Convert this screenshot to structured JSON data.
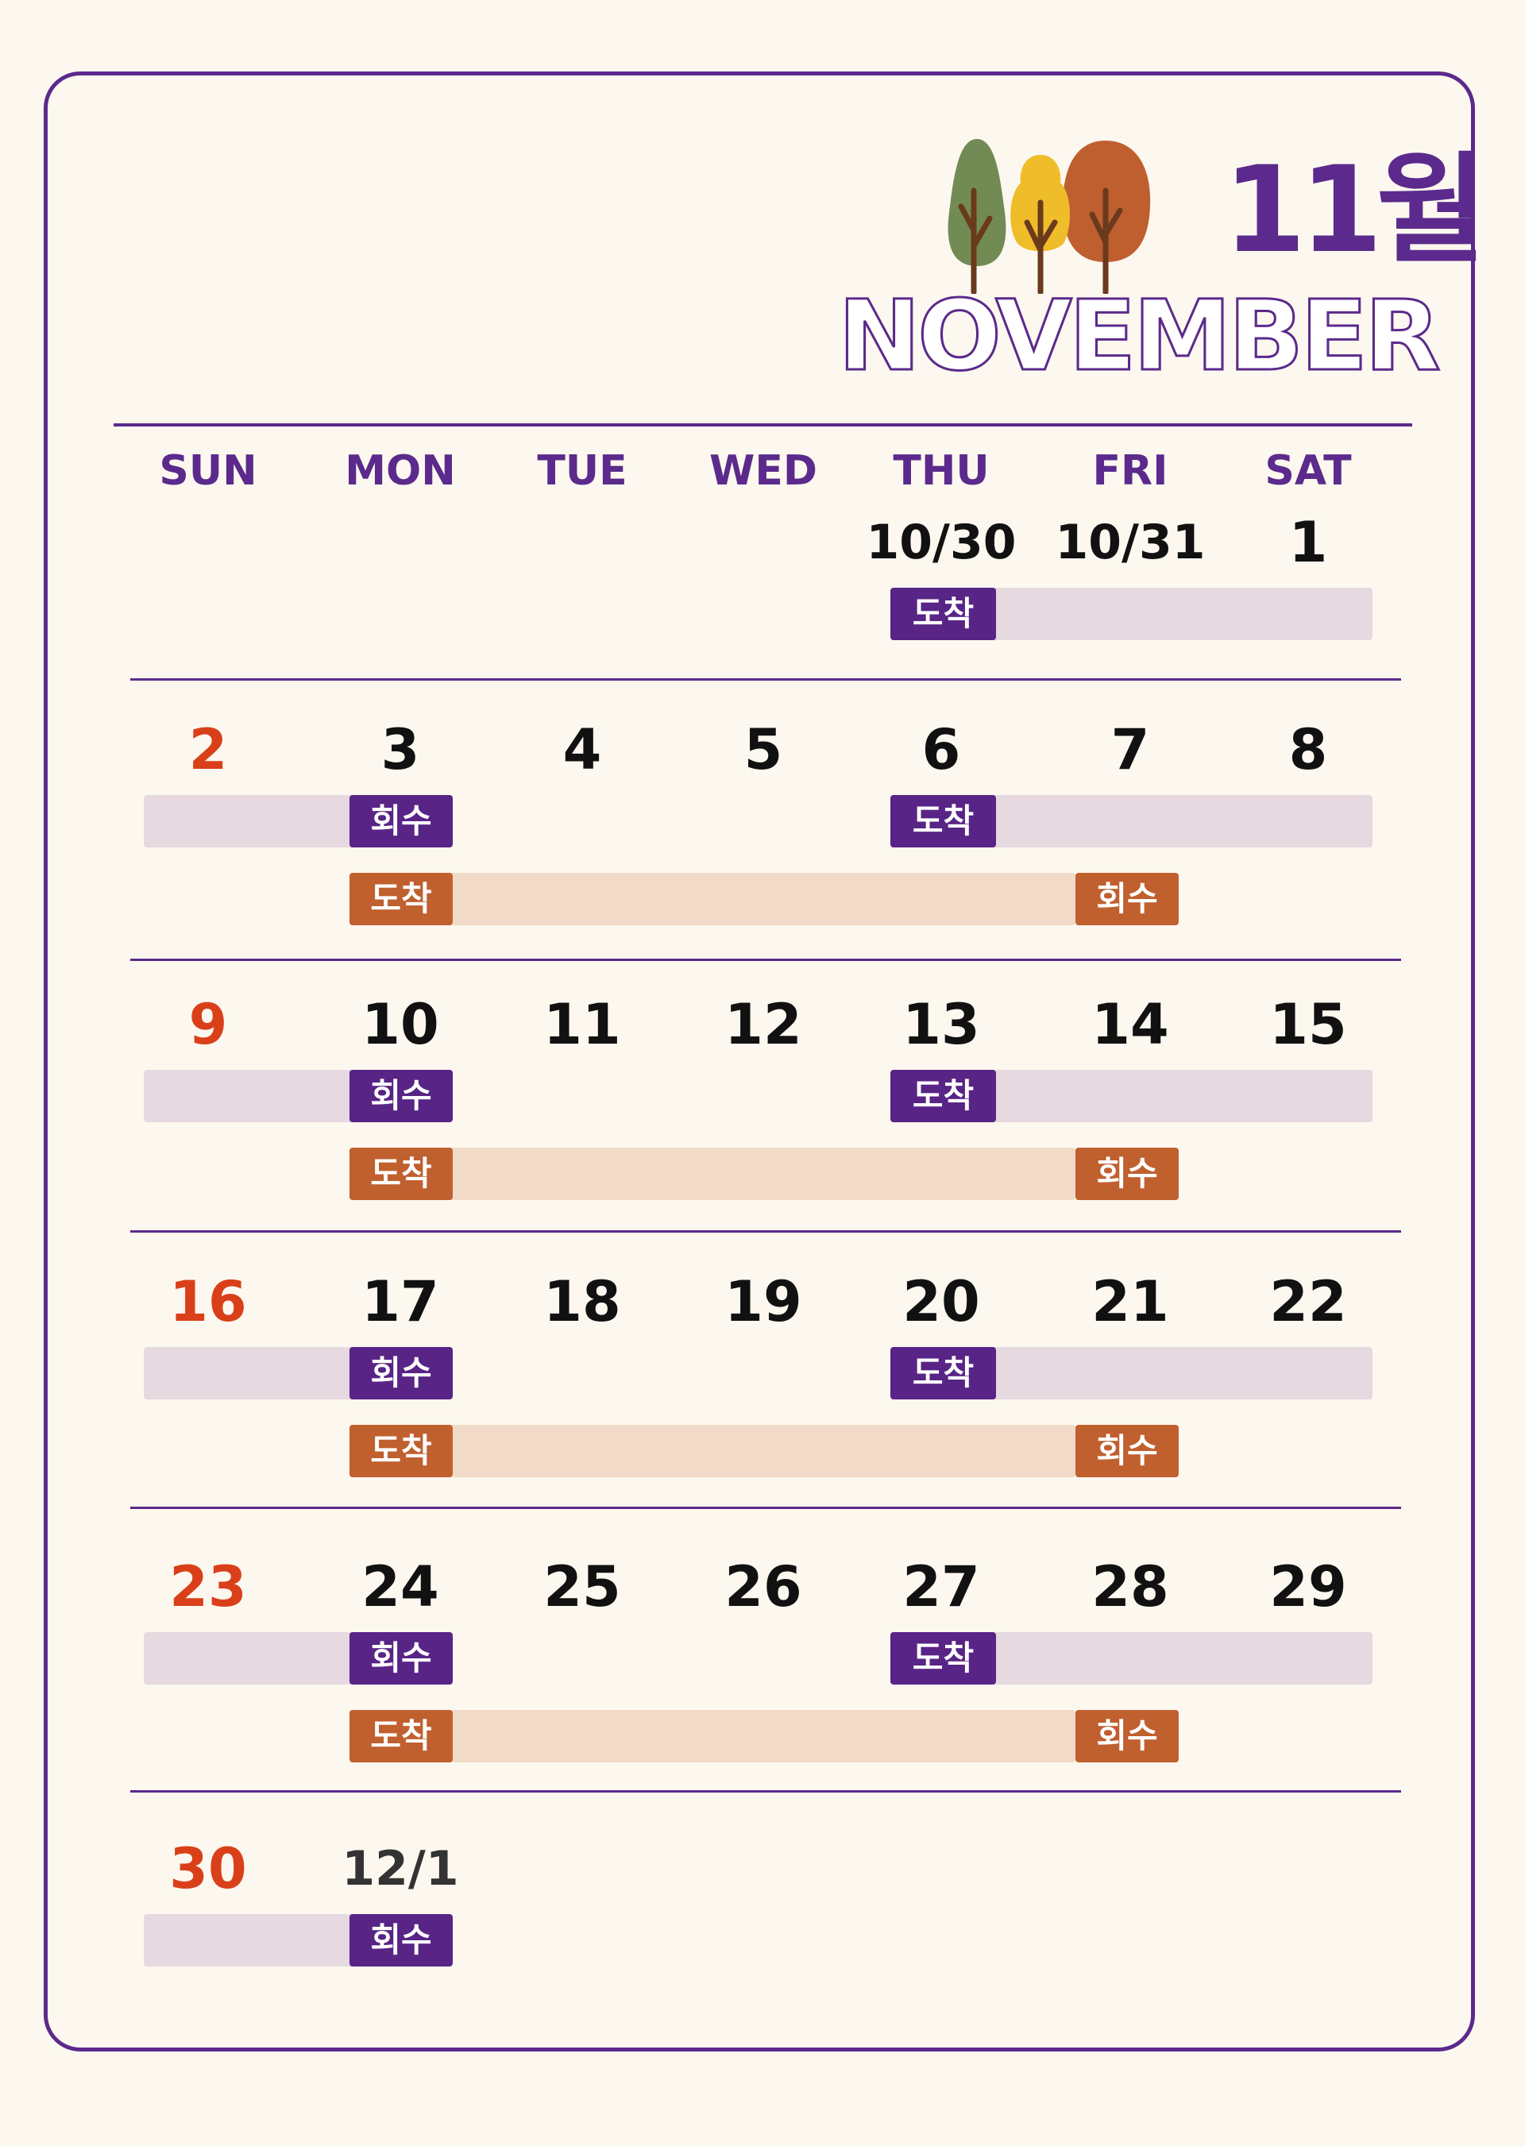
{
  "header": {
    "month_ko": "11월",
    "month_en": "NOVEMBER"
  },
  "colors": {
    "purple": "#582486",
    "purple_light": "#e6d9e0",
    "orange": "#c0602f",
    "orange_light": "#f2dac8",
    "sunday_red": "#d9401a"
  },
  "weekdays": [
    "SUN",
    "MON",
    "TUE",
    "WED",
    "THU",
    "FRI",
    "SAT"
  ],
  "weeks": [
    {
      "dates": [
        "",
        "",
        "",
        "",
        "10/30",
        "10/31",
        "1"
      ],
      "purple": [
        {
          "from": "THU",
          "to": "SAT",
          "label": "도착",
          "label_at": "THU"
        }
      ],
      "orange": []
    },
    {
      "dates": [
        "2",
        "3",
        "4",
        "5",
        "6",
        "7",
        "8"
      ],
      "purple": [
        {
          "from": "SUN",
          "to": "MON",
          "label": "회수",
          "label_at": "MON"
        },
        {
          "from": "THU",
          "to": "SAT",
          "label": "도착",
          "label_at": "THU"
        }
      ],
      "orange": [
        {
          "from": "MON",
          "to": "FRI",
          "label": "도착",
          "label_at": "MON"
        },
        {
          "label": "회수",
          "label_at": "FRI"
        }
      ]
    },
    {
      "dates": [
        "9",
        "10",
        "11",
        "12",
        "13",
        "14",
        "15"
      ],
      "purple": [
        {
          "from": "SUN",
          "to": "MON",
          "label": "회수",
          "label_at": "MON"
        },
        {
          "from": "THU",
          "to": "SAT",
          "label": "도착",
          "label_at": "THU"
        }
      ],
      "orange": [
        {
          "from": "MON",
          "to": "FRI",
          "label": "도착",
          "label_at": "MON"
        },
        {
          "label": "회수",
          "label_at": "FRI"
        }
      ]
    },
    {
      "dates": [
        "16",
        "17",
        "18",
        "19",
        "20",
        "21",
        "22"
      ],
      "purple": [
        {
          "from": "SUN",
          "to": "MON",
          "label": "회수",
          "label_at": "MON"
        },
        {
          "from": "THU",
          "to": "SAT",
          "label": "도착",
          "label_at": "THU"
        }
      ],
      "orange": [
        {
          "from": "MON",
          "to": "FRI",
          "label": "도착",
          "label_at": "MON"
        },
        {
          "label": "회수",
          "label_at": "FRI"
        }
      ]
    },
    {
      "dates": [
        "23",
        "24",
        "25",
        "26",
        "27",
        "28",
        "29"
      ],
      "purple": [
        {
          "from": "SUN",
          "to": "MON",
          "label": "회수",
          "label_at": "MON"
        },
        {
          "from": "THU",
          "to": "SAT",
          "label": "도착",
          "label_at": "THU"
        }
      ],
      "orange": [
        {
          "from": "MON",
          "to": "FRI",
          "label": "도착",
          "label_at": "MON"
        },
        {
          "label": "회수",
          "label_at": "FRI"
        }
      ]
    },
    {
      "dates": [
        "30",
        "12/1",
        "",
        "",
        "",
        "",
        ""
      ],
      "purple": [
        {
          "from": "SUN",
          "to": "MON",
          "label": "회수",
          "label_at": "MON"
        }
      ],
      "orange": []
    }
  ]
}
